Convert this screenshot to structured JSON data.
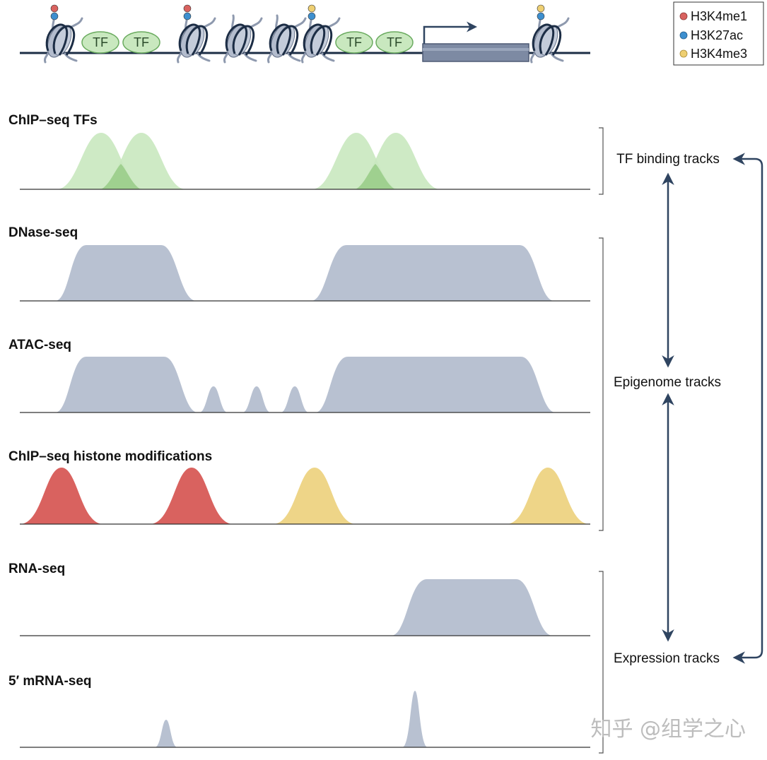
{
  "colors": {
    "tf_fill": "#a9d99a",
    "tf_stroke": "#6aab5f",
    "tf_overlap": "#84c276",
    "signal_gray": "#b8c1d1",
    "h3k4me1": "#d9625f",
    "h3k27ac": "#3d8fcf",
    "h3k4me3": "#eecf72",
    "dna": "#1c2d45",
    "gene_body": "#7d8aa3",
    "arrow": "#2f4460",
    "baseline": "#333333",
    "bracket": "#555555"
  },
  "legend": {
    "items": [
      {
        "label": "H3K4me1",
        "color": "#d9625f"
      },
      {
        "label": "H3K27ac",
        "color": "#3d8fcf"
      },
      {
        "label": "H3K4me3",
        "color": "#eecf72"
      }
    ]
  },
  "schematic": {
    "tf_label": "TF",
    "nucleosomes": [
      {
        "marks": [
          "h3k4me1",
          "h3k27ac"
        ]
      },
      {
        "marks": [
          "h3k4me1",
          "h3k27ac"
        ]
      },
      {
        "marks": []
      },
      {
        "marks": []
      },
      {
        "marks": [
          "h3k4me3",
          "h3k27ac"
        ]
      },
      {
        "marks": [
          "h3k4me3",
          "h3k27ac"
        ]
      }
    ]
  },
  "tracks": [
    {
      "id": "chip-tf",
      "title": "ChIP–seq TFs"
    },
    {
      "id": "dnase",
      "title": "DNase-seq"
    },
    {
      "id": "atac",
      "title": "ATAC-seq"
    },
    {
      "id": "chip-histone",
      "title": "ChIP–seq histone modifications"
    },
    {
      "id": "rna",
      "title": "RNA-seq"
    },
    {
      "id": "mrna5",
      "title": "5′ mRNA-seq"
    }
  ],
  "groups": {
    "tf_binding": "TF binding tracks",
    "epigenome": "Epigenome tracks",
    "expression": "Expression tracks"
  },
  "watermark": "知乎 @组学之心"
}
